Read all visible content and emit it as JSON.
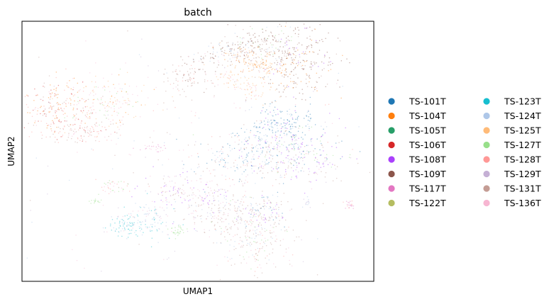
{
  "chart_data": {
    "type": "scatter",
    "title": "batch",
    "xlabel": "UMAP1",
    "ylabel": "UMAP2",
    "xticks": [],
    "yticks": [],
    "grid": false,
    "legend_position": "right",
    "legend_columns": 2,
    "series": [
      {
        "name": "TS-101T",
        "color": "#1f77b4"
      },
      {
        "name": "TS-104T",
        "color": "#ff7f0e"
      },
      {
        "name": "TS-105T",
        "color": "#279e68"
      },
      {
        "name": "TS-106T",
        "color": "#d62728"
      },
      {
        "name": "TS-108T",
        "color": "#aa40fc"
      },
      {
        "name": "TS-109T",
        "color": "#8c564b"
      },
      {
        "name": "TS-117T",
        "color": "#e377c2"
      },
      {
        "name": "TS-122T",
        "color": "#b5bd61"
      },
      {
        "name": "TS-123T",
        "color": "#17becf"
      },
      {
        "name": "TS-124T",
        "color": "#aec7e8"
      },
      {
        "name": "TS-125T",
        "color": "#ffbb78"
      },
      {
        "name": "TS-127T",
        "color": "#98df8a"
      },
      {
        "name": "TS-128T",
        "color": "#ff9896"
      },
      {
        "name": "TS-129T",
        "color": "#c5b0d5"
      },
      {
        "name": "TS-131T",
        "color": "#c49c94"
      },
      {
        "name": "TS-136T",
        "color": "#f7b6d2"
      }
    ]
  }
}
